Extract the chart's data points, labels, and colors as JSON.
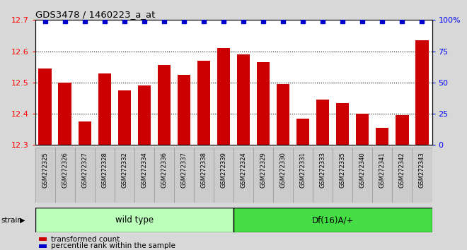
{
  "title": "GDS3478 / 1460223_a_at",
  "categories": [
    "GSM272325",
    "GSM272326",
    "GSM272327",
    "GSM272328",
    "GSM272332",
    "GSM272334",
    "GSM272336",
    "GSM272337",
    "GSM272338",
    "GSM272339",
    "GSM272324",
    "GSM272329",
    "GSM272330",
    "GSM272331",
    "GSM272333",
    "GSM272335",
    "GSM272340",
    "GSM272341",
    "GSM272342",
    "GSM272343"
  ],
  "bar_values": [
    12.545,
    12.5,
    12.375,
    12.53,
    12.475,
    12.49,
    12.555,
    12.525,
    12.57,
    12.61,
    12.59,
    12.565,
    12.495,
    12.385,
    12.445,
    12.435,
    12.4,
    12.355,
    12.395,
    12.635
  ],
  "wild_type_count": 10,
  "df16_count": 10,
  "ylim_left": [
    12.3,
    12.7
  ],
  "ylim_right": [
    0,
    100
  ],
  "y_ticks_left": [
    12.3,
    12.4,
    12.5,
    12.6,
    12.7
  ],
  "y_ticks_right": [
    0,
    25,
    50,
    75,
    100
  ],
  "bar_color": "#cc0000",
  "percentile_color": "#0000cc",
  "wild_type_color": "#bbffbb",
  "df16_color": "#44dd44",
  "group_border_color": "#000000",
  "background_color": "#d8d8d8",
  "plot_bg_color": "#ffffff",
  "legend_red_label": "transformed count",
  "legend_blue_label": "percentile rank within the sample",
  "wild_type_label": "wild type",
  "df16_label": "Df(16)A/+",
  "strain_label": "strain"
}
